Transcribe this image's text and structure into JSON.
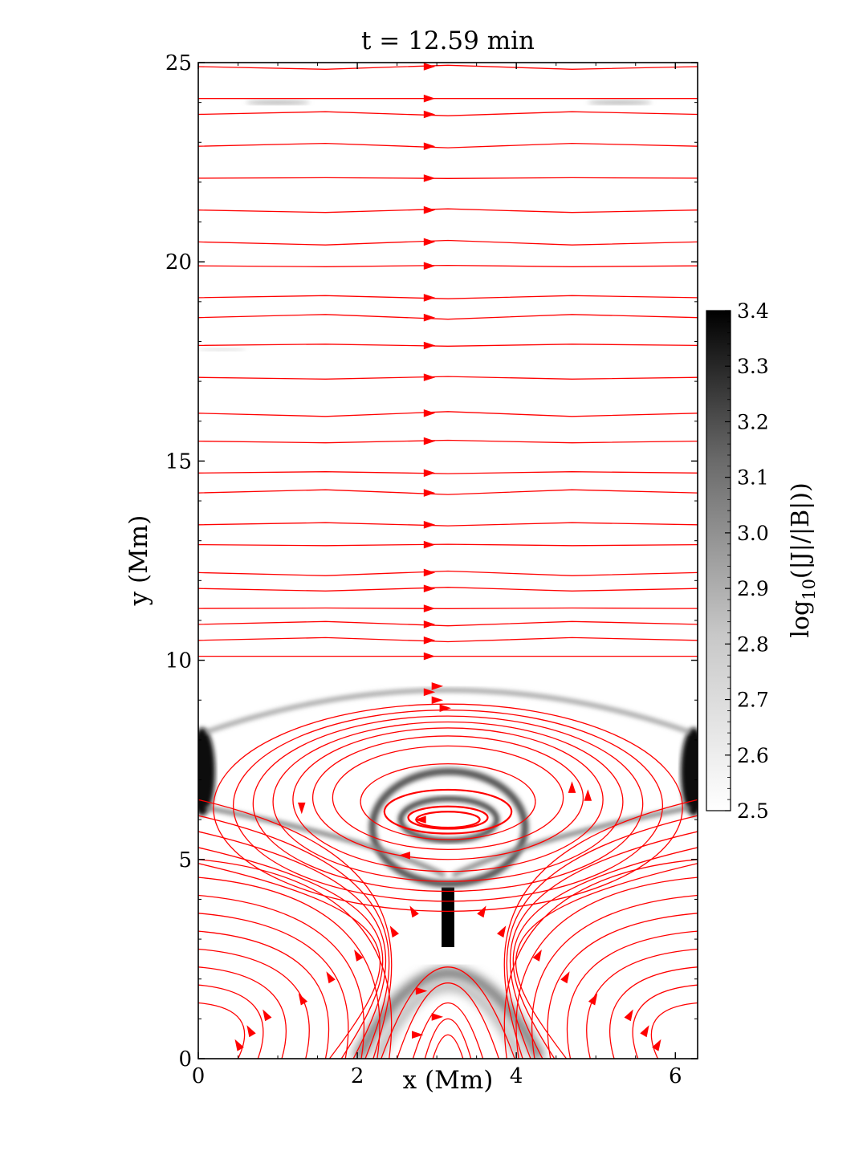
{
  "chart_data": {
    "type": "heatmap",
    "title": "t = 12.59 min",
    "xlabel": "x (Mm)",
    "ylabel": "y (Mm)",
    "xlim": [
      0,
      6.28
    ],
    "ylim": [
      0,
      25
    ],
    "x_ticks": [
      0,
      2,
      4,
      6
    ],
    "y_ticks": [
      0,
      5,
      10,
      15,
      20,
      25
    ],
    "x_tick_labels": [
      "0",
      "2",
      "4",
      "6"
    ],
    "y_tick_labels": [
      "0",
      "5",
      "10",
      "15",
      "20",
      "25"
    ],
    "colorbar": {
      "label": "log10(|J|/|B|)",
      "label_base": "log",
      "label_sub": "10",
      "label_rest": "(|J|/|B|))",
      "min": 2.5,
      "max": 3.4,
      "ticks": [
        2.5,
        2.6,
        2.7,
        2.8,
        2.9,
        3.0,
        3.1,
        3.2,
        3.3,
        3.4
      ],
      "tick_labels": [
        "2.5",
        "2.6",
        "2.7",
        "2.8",
        "2.9",
        "3.0",
        "3.1",
        "3.2",
        "3.3",
        "3.4"
      ],
      "colormap": "grayscale (white low, black high)"
    },
    "streamline_color": "#ff0000",
    "horizontal_field_lines_y": [
      10.1,
      10.5,
      10.9,
      11.3,
      11.8,
      12.2,
      12.9,
      13.4,
      14.2,
      14.7,
      15.5,
      16.2,
      17.1,
      17.9,
      18.6,
      19.1,
      19.9,
      20.5,
      21.3,
      22.1,
      22.9,
      23.7,
      24.1,
      24.9
    ],
    "arrow_x": 2.9,
    "flux_rope_center": {
      "x": 3.14,
      "y": 6.0
    },
    "current_sheet": {
      "x": 3.14,
      "y_range": [
        2.7,
        4.4
      ]
    },
    "xpoint_bottom_y": 2.7,
    "xpoint_top_y": 4.4
  },
  "colors": {
    "streamline": "#ff0000",
    "axes": "#000000",
    "background": "#ffffff"
  }
}
